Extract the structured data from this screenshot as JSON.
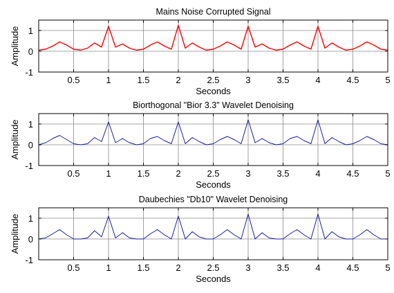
{
  "chart_data": [
    {
      "type": "line",
      "title": "Mains Noise Corrupted Signal",
      "xlabel": "Seconds",
      "ylabel": "Amplitude",
      "xlim": [
        0,
        5
      ],
      "ylim": [
        -1,
        1.5
      ],
      "xticks": [
        0.5,
        1,
        1.5,
        2,
        2.5,
        3,
        3.5,
        4,
        4.5,
        5
      ],
      "xtick_labels": [
        "0.5",
        "1",
        "1.5",
        "2",
        "2.5",
        "3",
        "3.5",
        "4",
        "4.5",
        "5"
      ],
      "yticks": [
        -1,
        0,
        1
      ],
      "ytick_labels": [
        "-1",
        "0",
        "1"
      ],
      "grid": true,
      "color": "#ff0000",
      "series": [
        {
          "x": [
            0,
            0.1,
            0.2,
            0.3,
            0.4,
            0.5,
            0.6,
            0.7,
            0.8,
            0.9,
            1.0,
            1.1,
            1.2,
            1.3,
            1.4,
            1.5,
            1.6,
            1.7,
            1.8,
            1.9,
            2.0,
            2.1,
            2.2,
            2.3,
            2.4,
            2.5,
            2.6,
            2.7,
            2.8,
            2.9,
            3.0,
            3.1,
            3.2,
            3.3,
            3.4,
            3.5,
            3.6,
            3.7,
            3.8,
            3.9,
            4.0,
            4.1,
            4.2,
            4.3,
            4.4,
            4.5,
            4.6,
            4.7,
            4.8,
            4.9,
            5.0
          ],
          "y": [
            0.05,
            0.1,
            0.25,
            0.45,
            0.3,
            0.1,
            0.05,
            0.15,
            0.4,
            0.2,
            1.2,
            0.2,
            0.35,
            0.15,
            0.05,
            0.1,
            0.3,
            0.45,
            0.25,
            0.1,
            1.25,
            0.15,
            0.4,
            0.2,
            0.05,
            0.1,
            0.25,
            0.45,
            0.3,
            0.1,
            1.2,
            0.2,
            0.35,
            0.15,
            0.05,
            0.1,
            0.3,
            0.45,
            0.25,
            0.1,
            1.2,
            0.15,
            0.4,
            0.2,
            0.05,
            0.1,
            0.25,
            0.45,
            0.3,
            0.1,
            0.05
          ]
        }
      ]
    },
    {
      "type": "line",
      "title": "Biorthogonal \"Bior 3.3\" Wavelet Denoising",
      "xlabel": "Seconds",
      "ylabel": "Amplitude",
      "xlim": [
        0,
        5
      ],
      "ylim": [
        -1,
        1.5
      ],
      "xticks": [
        0.5,
        1,
        1.5,
        2,
        2.5,
        3,
        3.5,
        4,
        4.5,
        5
      ],
      "xtick_labels": [
        "0.5",
        "1",
        "1.5",
        "2",
        "2.5",
        "3",
        "3.5",
        "4",
        "4.5",
        "5"
      ],
      "yticks": [
        -1,
        0,
        1
      ],
      "ytick_labels": [
        "-1",
        "0",
        "1"
      ],
      "grid": true,
      "color": "#1a1aa0",
      "series": [
        {
          "x": [
            0,
            0.1,
            0.2,
            0.3,
            0.4,
            0.5,
            0.6,
            0.7,
            0.8,
            0.9,
            1.0,
            1.1,
            1.2,
            1.3,
            1.4,
            1.5,
            1.6,
            1.7,
            1.8,
            1.9,
            2.0,
            2.1,
            2.2,
            2.3,
            2.4,
            2.5,
            2.6,
            2.7,
            2.8,
            2.9,
            3.0,
            3.1,
            3.2,
            3.3,
            3.4,
            3.5,
            3.6,
            3.7,
            3.8,
            3.9,
            4.0,
            4.1,
            4.2,
            4.3,
            4.4,
            4.5,
            4.6,
            4.7,
            4.8,
            4.9,
            5.0
          ],
          "y": [
            0.0,
            0.1,
            0.3,
            0.45,
            0.25,
            0.05,
            0.0,
            0.05,
            0.35,
            0.15,
            1.1,
            0.1,
            0.3,
            0.1,
            0.0,
            0.05,
            0.3,
            0.4,
            0.2,
            0.05,
            1.1,
            0.05,
            0.35,
            0.15,
            0.0,
            0.05,
            0.25,
            0.4,
            0.25,
            0.05,
            1.2,
            0.1,
            0.3,
            0.1,
            0.0,
            0.05,
            0.3,
            0.4,
            0.2,
            0.05,
            1.2,
            0.05,
            0.35,
            0.15,
            0.0,
            0.05,
            0.2,
            0.4,
            0.25,
            0.05,
            0.0
          ]
        }
      ]
    },
    {
      "type": "line",
      "title": "Daubechies \"Db10\" Wavelet Denoising",
      "xlabel": "Seconds",
      "ylabel": "Amplitude",
      "xlim": [
        0,
        5
      ],
      "ylim": [
        -1,
        1.5
      ],
      "xticks": [
        0.5,
        1,
        1.5,
        2,
        2.5,
        3,
        3.5,
        4,
        4.5,
        5
      ],
      "xtick_labels": [
        "0.5",
        "1",
        "1.5",
        "2",
        "2.5",
        "3",
        "3.5",
        "4",
        "4.5",
        "5"
      ],
      "yticks": [
        -1,
        0,
        1
      ],
      "ytick_labels": [
        "-1",
        "0",
        "1"
      ],
      "grid": true,
      "color": "#1a1aa0",
      "series": [
        {
          "x": [
            0,
            0.1,
            0.2,
            0.3,
            0.4,
            0.5,
            0.6,
            0.7,
            0.8,
            0.9,
            1.0,
            1.1,
            1.2,
            1.3,
            1.4,
            1.5,
            1.6,
            1.7,
            1.8,
            1.9,
            2.0,
            2.1,
            2.2,
            2.3,
            2.4,
            2.5,
            2.6,
            2.7,
            2.8,
            2.9,
            3.0,
            3.1,
            3.2,
            3.3,
            3.4,
            3.5,
            3.6,
            3.7,
            3.8,
            3.9,
            4.0,
            4.1,
            4.2,
            4.3,
            4.4,
            4.5,
            4.6,
            4.7,
            4.8,
            4.9,
            5.0
          ],
          "y": [
            0.0,
            0.05,
            0.25,
            0.45,
            0.2,
            0.0,
            0.0,
            0.05,
            0.4,
            0.1,
            1.1,
            0.05,
            0.3,
            0.05,
            0.0,
            0.0,
            0.25,
            0.45,
            0.2,
            0.0,
            1.1,
            0.0,
            0.35,
            0.1,
            0.0,
            0.0,
            0.2,
            0.45,
            0.2,
            0.0,
            1.2,
            0.0,
            0.3,
            0.05,
            0.0,
            0.0,
            0.25,
            0.45,
            0.2,
            0.0,
            1.2,
            0.0,
            0.35,
            0.1,
            0.0,
            0.0,
            0.2,
            0.45,
            0.2,
            0.0,
            0.0
          ]
        }
      ]
    }
  ]
}
